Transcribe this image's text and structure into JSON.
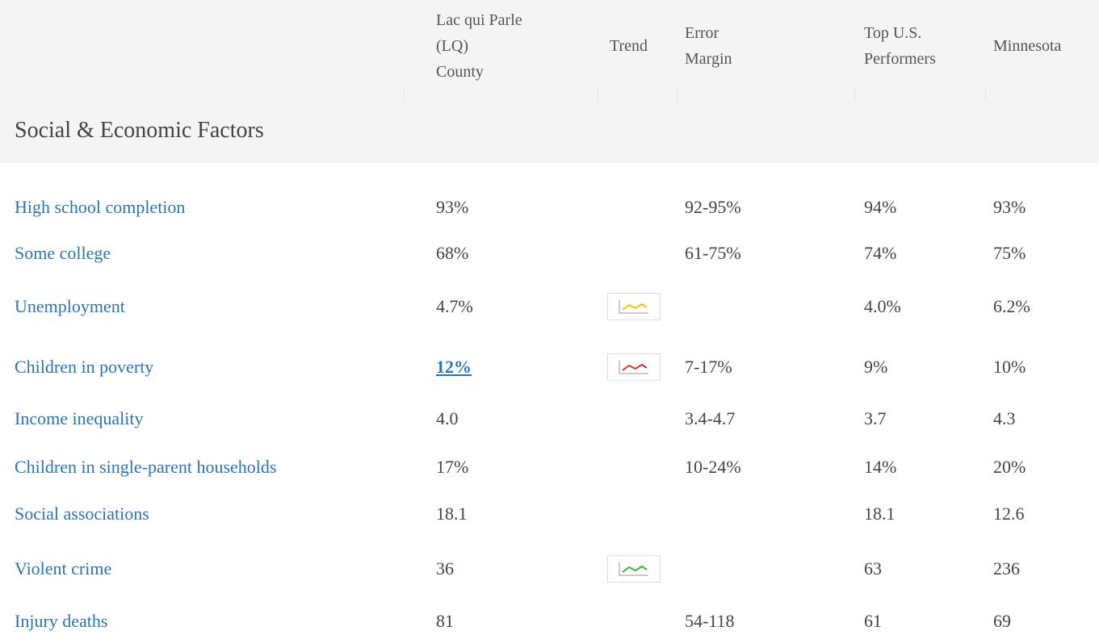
{
  "header": {
    "columns": [
      {
        "lines": [
          "Lac qui Parle",
          "(LQ)",
          "County"
        ]
      },
      {
        "lines": [
          "Trend"
        ]
      },
      {
        "lines": [
          "Error",
          "Margin"
        ]
      },
      {
        "lines": [
          "Top U.S.",
          "Performers"
        ]
      },
      {
        "lines": [
          "Minnesota"
        ]
      }
    ],
    "section": "Social & Economic Factors"
  },
  "table": {
    "rows": [
      {
        "measure": "High school completion",
        "county": "93%",
        "trend": null,
        "error": "92-95%",
        "top": "94%",
        "state": "93%"
      },
      {
        "measure": "Some college",
        "county": "68%",
        "trend": null,
        "error": "61-75%",
        "top": "74%",
        "state": "75%"
      },
      {
        "measure": "Unemployment",
        "county": "4.7%",
        "trend": "#f2c200",
        "error": null,
        "top": "4.0%",
        "state": "6.2%"
      },
      {
        "measure": "Children in poverty",
        "county": "12%",
        "county_link": true,
        "trend": "#e0322d",
        "error": "7-17%",
        "top": "9%",
        "state": "10%"
      },
      {
        "measure": "Income inequality",
        "county": "4.0",
        "trend": null,
        "error": "3.4-4.7",
        "top": "3.7",
        "state": "4.3"
      },
      {
        "measure": "Children in single-parent households",
        "county": "17%",
        "trend": null,
        "error": "10-24%",
        "top": "14%",
        "state": "20%"
      },
      {
        "measure": "Social associations",
        "county": "18.1",
        "trend": null,
        "error": null,
        "top": "18.1",
        "state": "12.6"
      },
      {
        "measure": "Violent crime",
        "county": "36",
        "trend": "#3cb43c",
        "error": null,
        "top": "63",
        "state": "236"
      },
      {
        "measure": "Injury deaths",
        "county": "81",
        "trend": null,
        "error": "54-118",
        "top": "61",
        "state": "69"
      }
    ]
  }
}
